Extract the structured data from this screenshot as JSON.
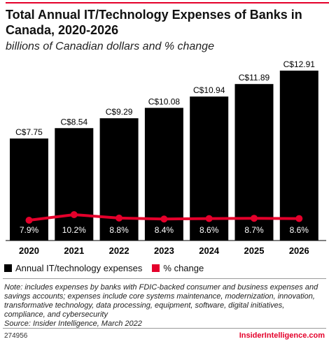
{
  "title": "Total Annual IT/Technology Expenses of Banks in Canada, 2020-2026",
  "subtitle": "billions of Canadian dollars and % change",
  "chart_data": {
    "type": "bar",
    "categories": [
      "2020",
      "2021",
      "2022",
      "2023",
      "2024",
      "2025",
      "2026"
    ],
    "series": [
      {
        "name": "Annual IT/technology expenses",
        "type": "bar",
        "values": [
          7.75,
          8.54,
          9.29,
          10.08,
          10.94,
          11.89,
          12.91
        ],
        "labels": [
          "C$7.75",
          "C$8.54",
          "C$9.29",
          "C$10.08",
          "C$10.94",
          "C$11.89",
          "C$12.91"
        ],
        "color": "#000000"
      },
      {
        "name": "% change",
        "type": "line",
        "values": [
          7.9,
          10.2,
          8.8,
          8.4,
          8.6,
          8.7,
          8.6
        ],
        "labels": [
          "7.9%",
          "10.2%",
          "8.8%",
          "8.4%",
          "8.6%",
          "8.7%",
          "8.6%"
        ],
        "color": "#e4002b"
      }
    ],
    "ylim": [
      0,
      12.91
    ],
    "grid": false,
    "legend": "bottom-left"
  },
  "legend": [
    {
      "label": "Annual IT/technology expenses",
      "color": "#000000"
    },
    {
      "label": "% change",
      "color": "#e4002b"
    }
  ],
  "note": "Note: includes expenses by banks with FDIC-backed consumer and business expenses and savings accounts; expenses include core systems maintenance, modernization, innovation, transformative technology, data processing, equipment, software, digital initiatives, compliance, and cybersecurity",
  "source": "Source: Insider Intelligence, March 2022",
  "chart_id": "274956",
  "brand": "InsiderIntelligence.com"
}
